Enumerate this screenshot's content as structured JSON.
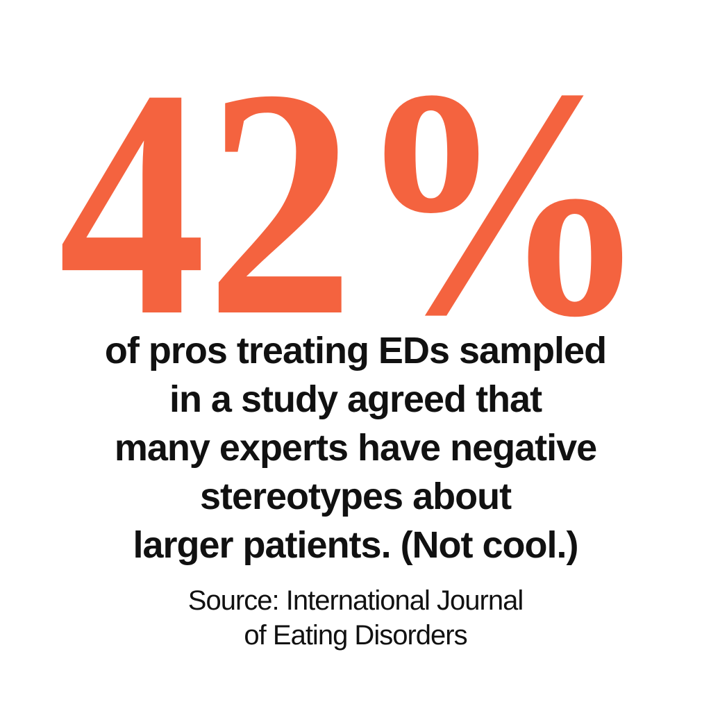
{
  "headline": {
    "figure": "42%"
  },
  "statement": {
    "lines": [
      "of pros treating EDs sampled",
      "in a study agreed that",
      "many experts have negative",
      "stereotypes about",
      "larger patients. (Not cool.)"
    ]
  },
  "source": {
    "lines": [
      "Source: International Journal",
      "of Eating Disorders"
    ]
  }
}
